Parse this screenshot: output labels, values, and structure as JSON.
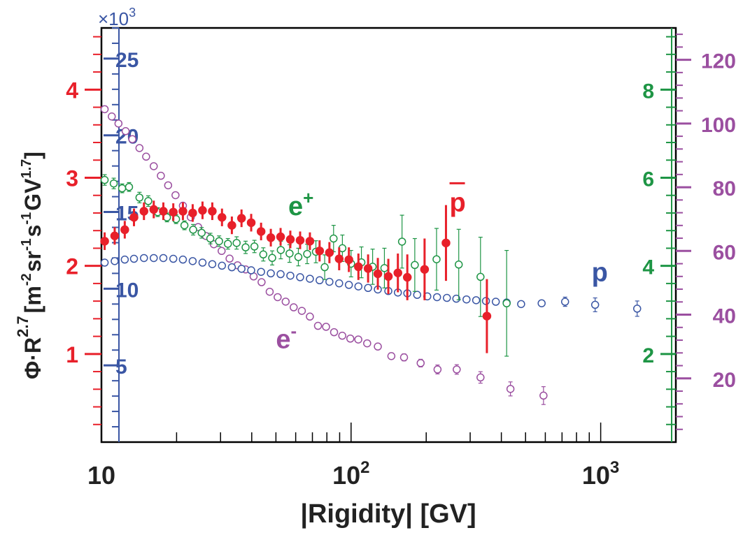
{
  "chart_data": {
    "type": "scatter",
    "x_scale": "log",
    "xlim": [
      10,
      2000
    ],
    "x_tick_labels": [
      {
        "value": 10,
        "base": "10",
        "exp": ""
      },
      {
        "value": 100,
        "base": "10",
        "exp": "2"
      },
      {
        "value": 1000,
        "base": "10",
        "exp": "3"
      }
    ],
    "xlabel": "|Rigidity| [GV]",
    "ylabel": {
      "phi": "Φ",
      "dot1": "·",
      "r": "R",
      "hat": "^",
      "r_exp": "2.7",
      "units": [
        "[m",
        "-2",
        "sr",
        "-1",
        "s",
        "-1",
        "GV",
        "1.7",
        "]"
      ]
    },
    "axes": [
      {
        "id": "antiproton",
        "color": "#e8202a",
        "side": "left-outer",
        "ylim": [
          0,
          4.7
        ],
        "ticks": [
          1,
          2,
          3,
          4
        ],
        "tick_labels": [
          "1",
          "2",
          "3",
          "4"
        ]
      },
      {
        "id": "proton",
        "color": "#3a56a4",
        "side": "left-inner",
        "ylim": [
          0,
          27
        ],
        "multiplier": "×10",
        "multiplier_exp": "3",
        "ticks": [
          5,
          10,
          15,
          20,
          25
        ],
        "tick_labels": [
          "5",
          "10",
          "15",
          "20",
          "25"
        ]
      },
      {
        "id": "positron",
        "color": "#1e9545",
        "side": "right-inner",
        "ylim": [
          0,
          9.4
        ],
        "ticks": [
          2,
          4,
          6,
          8
        ],
        "tick_labels": [
          "2",
          "4",
          "6",
          "8"
        ]
      },
      {
        "id": "electron",
        "color": "#9b4fa0",
        "side": "right-outer",
        "ylim": [
          0,
          130
        ],
        "ticks": [
          20,
          40,
          60,
          80,
          100,
          120
        ],
        "tick_labels": [
          "20",
          "40",
          "60",
          "80",
          "100",
          "120"
        ]
      }
    ],
    "series": [
      {
        "name": "p",
        "axis": "proton",
        "color": "#3a56a4",
        "marker": "open-circle",
        "label": "p",
        "label_at": [
          920,
          10.5
        ],
        "points": [
          [
            10.3,
            11.7
          ],
          [
            11.3,
            11.8
          ],
          [
            12.4,
            11.9
          ],
          [
            13.5,
            11.95
          ],
          [
            14.8,
            12.0
          ],
          [
            16.2,
            12.0
          ],
          [
            17.7,
            12.0
          ],
          [
            19.4,
            11.95
          ],
          [
            21.2,
            11.9
          ],
          [
            23.2,
            11.8
          ],
          [
            25.4,
            11.7
          ],
          [
            27.8,
            11.6
          ],
          [
            30.4,
            11.5
          ],
          [
            33.3,
            11.4
          ],
          [
            36.4,
            11.3
          ],
          [
            39.8,
            11.2
          ],
          [
            43.6,
            11.1
          ],
          [
            47.7,
            11.0
          ],
          [
            52.2,
            10.95
          ],
          [
            57.1,
            10.85
          ],
          [
            62.5,
            10.75
          ],
          [
            68.4,
            10.65
          ],
          [
            74.8,
            10.55
          ],
          [
            81.9,
            10.45
          ],
          [
            89.6,
            10.35
          ],
          [
            98.0,
            10.25
          ],
          [
            107,
            10.15
          ],
          [
            117,
            10.05
          ],
          [
            128,
            9.95
          ],
          [
            141,
            9.85
          ],
          [
            154,
            9.75
          ],
          [
            168,
            9.7
          ],
          [
            184,
            9.6
          ],
          [
            202,
            9.5
          ],
          [
            221,
            9.45
          ],
          [
            242,
            9.4
          ],
          [
            264,
            9.35
          ],
          [
            290,
            9.3
          ],
          [
            317,
            9.25
          ],
          [
            347,
            9.2
          ],
          [
            380,
            9.15
          ],
          [
            420,
            9.1
          ],
          [
            480,
            9.0
          ],
          [
            580,
            9.05
          ],
          [
            720,
            9.15
          ],
          [
            950,
            8.95
          ],
          [
            1400,
            8.7
          ]
        ],
        "errors": [
          0.05,
          0.05,
          0.05,
          0.05,
          0.05,
          0.05,
          0.05,
          0.05,
          0.05,
          0.05,
          0.05,
          0.05,
          0.05,
          0.05,
          0.05,
          0.05,
          0.05,
          0.05,
          0.05,
          0.05,
          0.05,
          0.05,
          0.05,
          0.05,
          0.05,
          0.05,
          0.05,
          0.05,
          0.05,
          0.05,
          0.05,
          0.05,
          0.05,
          0.05,
          0.05,
          0.05,
          0.05,
          0.05,
          0.05,
          0.05,
          0.05,
          0.08,
          0.12,
          0.2,
          0.3,
          0.45,
          0.5
        ]
      },
      {
        "name": "e+",
        "axis": "positron",
        "color": "#1e9545",
        "marker": "open-circle",
        "label": "e",
        "label_sup": "+",
        "label_at": [
          56,
          5.15
        ],
        "points": [
          [
            10.3,
            5.95
          ],
          [
            11.2,
            5.87
          ],
          [
            12.1,
            5.76
          ],
          [
            12.9,
            5.79
          ],
          [
            14.2,
            5.55
          ],
          [
            15.4,
            5.47
          ],
          [
            16.8,
            5.22
          ],
          [
            18.3,
            5.1
          ],
          [
            19.9,
            5.06
          ],
          [
            21.5,
            4.92
          ],
          [
            23.3,
            4.82
          ],
          [
            25.2,
            4.75
          ],
          [
            27.3,
            4.62
          ],
          [
            29.6,
            4.56
          ],
          [
            32.1,
            4.5
          ],
          [
            34.8,
            4.52
          ],
          [
            37.8,
            4.42
          ],
          [
            41.0,
            4.44
          ],
          [
            44.5,
            4.26
          ],
          [
            48.3,
            4.18
          ],
          [
            52.3,
            4.36
          ],
          [
            56.7,
            4.28
          ],
          [
            61.5,
            4.2
          ],
          [
            66.7,
            4.27
          ],
          [
            72.3,
            4.32
          ],
          [
            78.4,
            3.97
          ],
          [
            85.1,
            4.62
          ],
          [
            92.3,
            4.4
          ],
          [
            100,
            4.05
          ],
          [
            110,
            4.08
          ],
          [
            122,
            3.98
          ],
          [
            136,
            3.95
          ],
          [
            160,
            4.55
          ],
          [
            180,
            4.02
          ],
          [
            220,
            4.15
          ],
          [
            270,
            4.03
          ],
          [
            330,
            3.75
          ],
          [
            420,
            3.15
          ]
        ],
        "errors": [
          0.12,
          0.12,
          0.1,
          0.1,
          0.12,
          0.12,
          0.1,
          0.1,
          0.1,
          0.1,
          0.12,
          0.12,
          0.12,
          0.12,
          0.12,
          0.14,
          0.14,
          0.14,
          0.15,
          0.16,
          0.2,
          0.2,
          0.2,
          0.22,
          0.25,
          0.28,
          0.3,
          0.3,
          0.3,
          0.35,
          0.4,
          0.45,
          0.6,
          0.6,
          0.7,
          0.8,
          0.9,
          1.2
        ]
      },
      {
        "name": "e-",
        "axis": "electron",
        "color": "#9b4fa0",
        "marker": "open-circle",
        "label": "e",
        "label_sup": "-",
        "label_at": [
          50,
          29.5
        ],
        "points": [
          [
            10.3,
            104.5
          ],
          [
            11.0,
            102.2
          ],
          [
            11.7,
            100.0
          ],
          [
            12.5,
            97.6
          ],
          [
            13.3,
            95.1
          ],
          [
            14.2,
            92.3
          ],
          [
            15.1,
            89.6
          ],
          [
            16.2,
            86.6
          ],
          [
            17.3,
            83.6
          ],
          [
            18.5,
            80.6
          ],
          [
            19.8,
            77.5
          ],
          [
            21.2,
            74.2
          ],
          [
            22.8,
            70.6
          ],
          [
            24.4,
            67.5
          ],
          [
            26.2,
            64.7
          ],
          [
            28.2,
            62.1
          ],
          [
            30.3,
            60.0
          ],
          [
            32.6,
            57.6
          ],
          [
            35.1,
            55.5
          ],
          [
            37.8,
            54.2
          ],
          [
            40.7,
            52.0
          ],
          [
            43.8,
            50.2
          ],
          [
            47.2,
            47.2
          ],
          [
            50.8,
            45.5
          ],
          [
            54.7,
            44.1
          ],
          [
            58.9,
            42.3
          ],
          [
            63.5,
            41.2
          ],
          [
            68.4,
            39.4
          ],
          [
            73.7,
            36.5
          ],
          [
            79.4,
            36.2
          ],
          [
            85.5,
            34.5
          ],
          [
            92.2,
            33.4
          ],
          [
            99.3,
            32.5
          ],
          [
            106.9,
            32.2
          ],
          [
            116,
            31.0
          ],
          [
            128,
            30.0
          ],
          [
            145,
            27.0
          ],
          [
            163,
            26.6
          ],
          [
            190,
            24.8
          ],
          [
            222,
            22.8
          ],
          [
            265,
            22.8
          ],
          [
            330,
            20.3
          ],
          [
            435,
            16.7
          ],
          [
            590,
            14.6
          ]
        ],
        "errors": [
          1.0,
          0.8,
          0.8,
          0.8,
          0.8,
          0.8,
          0.8,
          0.8,
          0.8,
          0.8,
          0.8,
          0.8,
          0.8,
          0.8,
          0.8,
          0.8,
          0.8,
          0.8,
          0.8,
          0.8,
          0.8,
          0.8,
          0.8,
          0.8,
          0.8,
          0.8,
          0.8,
          0.8,
          0.8,
          0.8,
          0.8,
          0.8,
          0.8,
          0.8,
          0.9,
          0.9,
          1.0,
          1.1,
          1.2,
          1.4,
          1.5,
          1.8,
          2.2,
          2.8
        ]
      },
      {
        "name": "p̄",
        "axis": "antiproton",
        "color": "#e8202a",
        "marker": "filled-circle",
        "label": "p",
        "label_at": [
          248,
          2.62
        ],
        "points": [
          [
            10.3,
            2.28
          ],
          [
            11.3,
            2.34
          ],
          [
            12.4,
            2.41
          ],
          [
            13.5,
            2.55
          ],
          [
            14.8,
            2.62
          ],
          [
            16.2,
            2.64
          ],
          [
            17.7,
            2.62
          ],
          [
            19.4,
            2.61
          ],
          [
            21.2,
            2.62
          ],
          [
            23.2,
            2.6
          ],
          [
            25.4,
            2.63
          ],
          [
            27.8,
            2.62
          ],
          [
            30.4,
            2.55
          ],
          [
            33.3,
            2.46
          ],
          [
            36.4,
            2.54
          ],
          [
            39.8,
            2.49
          ],
          [
            43.6,
            2.39
          ],
          [
            47.7,
            2.32
          ],
          [
            52.2,
            2.33
          ],
          [
            57.1,
            2.3
          ],
          [
            62.5,
            2.29
          ],
          [
            68.4,
            2.28
          ],
          [
            74.8,
            2.17
          ],
          [
            81.9,
            2.15
          ],
          [
            89.6,
            2.08
          ],
          [
            98.0,
            2.07
          ],
          [
            107,
            1.99
          ],
          [
            117,
            1.97
          ],
          [
            128,
            1.91
          ],
          [
            141,
            1.88
          ],
          [
            154,
            1.92
          ],
          [
            168,
            1.87
          ],
          [
            197,
            1.96
          ],
          [
            240,
            2.26
          ],
          [
            350,
            1.43
          ]
        ],
        "errors": [
          0.1,
          0.1,
          0.1,
          0.1,
          0.1,
          0.1,
          0.1,
          0.1,
          0.1,
          0.1,
          0.1,
          0.1,
          0.1,
          0.1,
          0.1,
          0.1,
          0.1,
          0.1,
          0.1,
          0.1,
          0.1,
          0.1,
          0.12,
          0.12,
          0.13,
          0.14,
          0.15,
          0.16,
          0.18,
          0.2,
          0.22,
          0.26,
          0.35,
          0.43,
          0.42
        ]
      }
    ]
  }
}
